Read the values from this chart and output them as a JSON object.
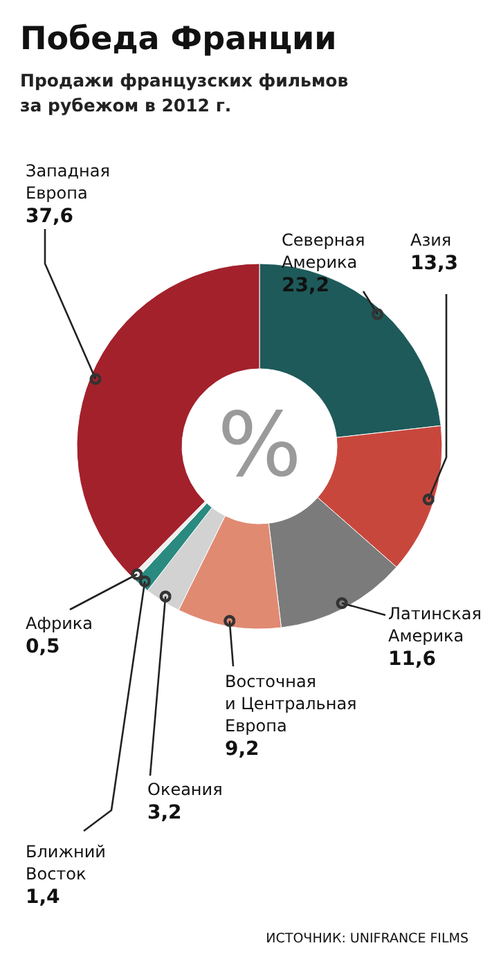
{
  "chart_data": {
    "type": "donut",
    "title": "Победа Франции",
    "subtitle": "Продажи французских фильмов\nза рубежом в 2012 г.",
    "categories": [
      "Северная\nАмерика",
      "Азия",
      "Латинская\nАмерика",
      "Восточная\nи Центральная\nЕвропа",
      "Океания",
      "Ближний\nВосток",
      "Африка",
      "Западная\nЕвропа"
    ],
    "values": [
      23.2,
      13.3,
      11.6,
      9.2,
      3.2,
      1.4,
      0.5,
      37.6
    ],
    "value_labels": [
      "23,2",
      "13,3",
      "11,6",
      "9,2",
      "3,2",
      "1,4",
      "0,5",
      "37,6"
    ],
    "colors": [
      "#1e5a5a",
      "#c8473d",
      "#7b7b7b",
      "#e08a72",
      "#d2d2d2",
      "#2a8a80",
      "#efefef",
      "#a3212b"
    ],
    "annotations": [
      "%",
      "ИСТОЧНИК: UNIFRANCE FILMS"
    ]
  }
}
